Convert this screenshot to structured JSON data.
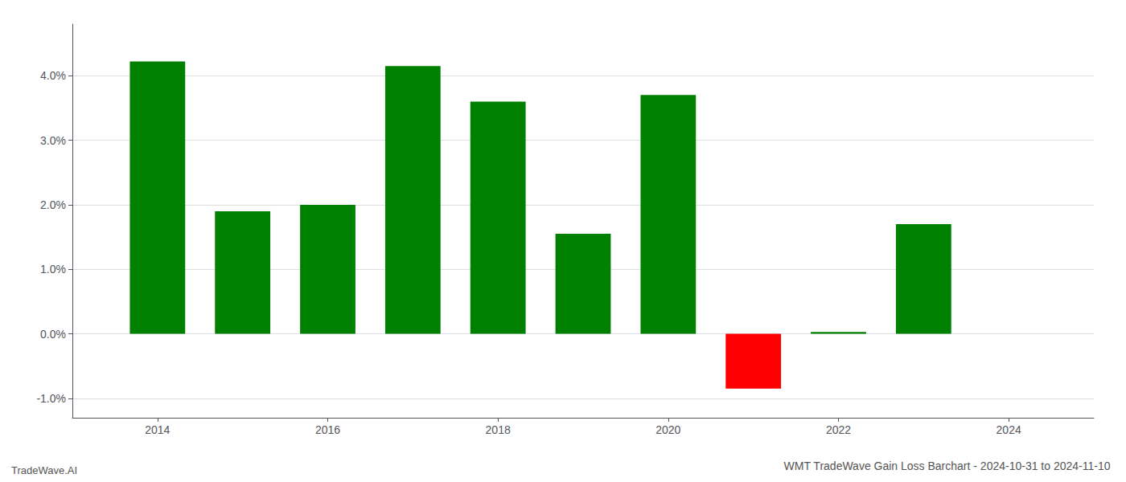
{
  "chart_data": {
    "type": "bar",
    "title": "WMT TradeWave Gain Loss Barchart - 2024-10-31 to 2024-11-10",
    "annotations": [
      "TradeWave.AI"
    ],
    "x": [
      2014,
      2015,
      2016,
      2017,
      2018,
      2019,
      2020,
      2021,
      2022,
      2023
    ],
    "values": [
      0.0422,
      0.019,
      0.02,
      0.0415,
      0.036,
      0.0155,
      0.037,
      -0.0085,
      0.0003,
      0.017
    ],
    "colors": [
      "#008000",
      "#008000",
      "#008000",
      "#008000",
      "#008000",
      "#008000",
      "#008000",
      "#ff0000",
      "#008000",
      "#008000"
    ],
    "xlim": [
      2013.0,
      2025.0
    ],
    "xticks": [
      2014,
      2016,
      2018,
      2020,
      2022,
      2024
    ],
    "ylim": [
      -0.013,
      0.048
    ],
    "yticks": [
      {
        "value": -0.01,
        "label": "-1.0%"
      },
      {
        "value": 0.0,
        "label": "0.0%"
      },
      {
        "value": 0.01,
        "label": "1.0%"
      },
      {
        "value": 0.02,
        "label": "2.0%"
      },
      {
        "value": 0.03,
        "label": "3.0%"
      },
      {
        "value": 0.04,
        "label": "4.0%"
      }
    ],
    "grid": true
  }
}
